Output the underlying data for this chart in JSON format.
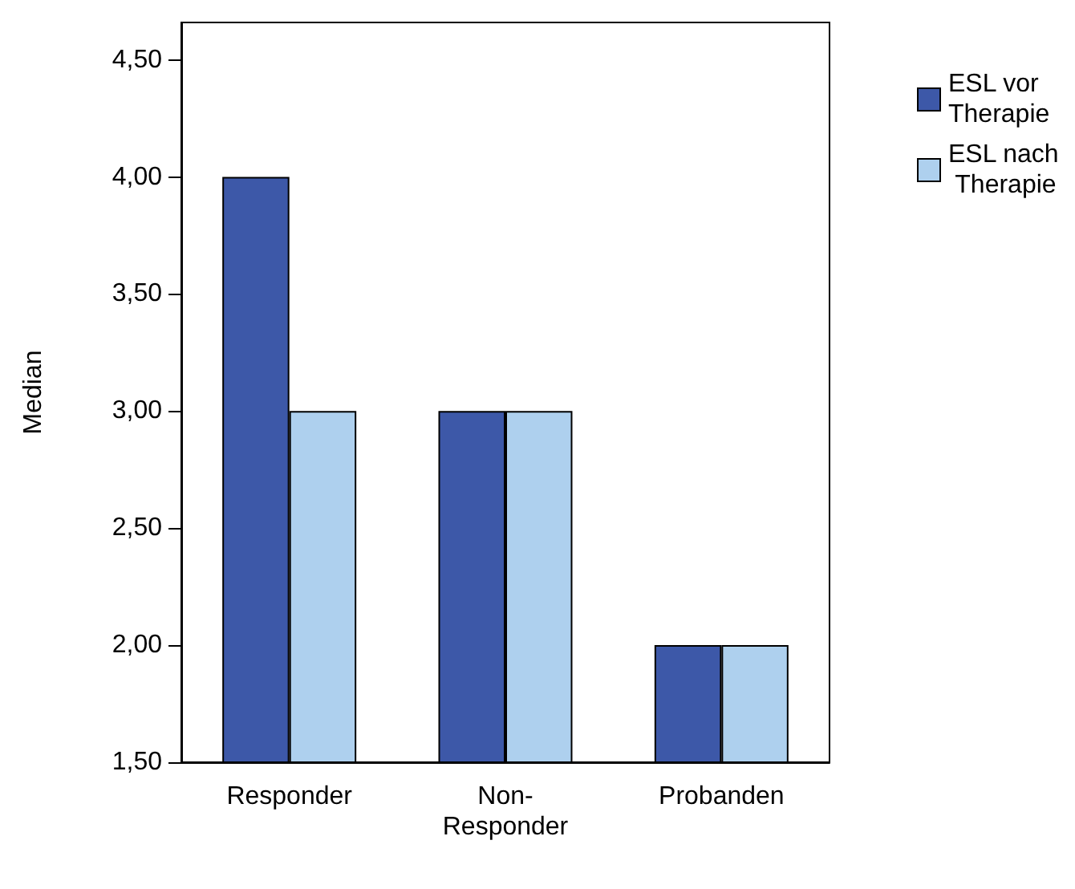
{
  "chart_data": {
    "type": "bar",
    "ylabel": "Median",
    "categories": [
      "Responder",
      "Non-Responder",
      "Probanden"
    ],
    "series": [
      {
        "name": "ESL vor Therapie",
        "color": "#3d58a8",
        "values": [
          4,
          3,
          2
        ]
      },
      {
        "name": "ESL nach Therapie",
        "color": "#aed0ee",
        "values": [
          3,
          3,
          2
        ]
      }
    ],
    "ylim": [
      1.5,
      4.66
    ],
    "yticks": [
      {
        "value": 1.5,
        "label": "1,50"
      },
      {
        "value": 2,
        "label": "2,00"
      },
      {
        "value": 2.5,
        "label": "2,50"
      },
      {
        "value": 3,
        "label": "3,00"
      },
      {
        "value": 3.5,
        "label": "3,50"
      },
      {
        "value": 4,
        "label": "4,00"
      },
      {
        "value": 4.5,
        "label": "4,50"
      }
    ],
    "grid": false,
    "legend": "top right"
  }
}
